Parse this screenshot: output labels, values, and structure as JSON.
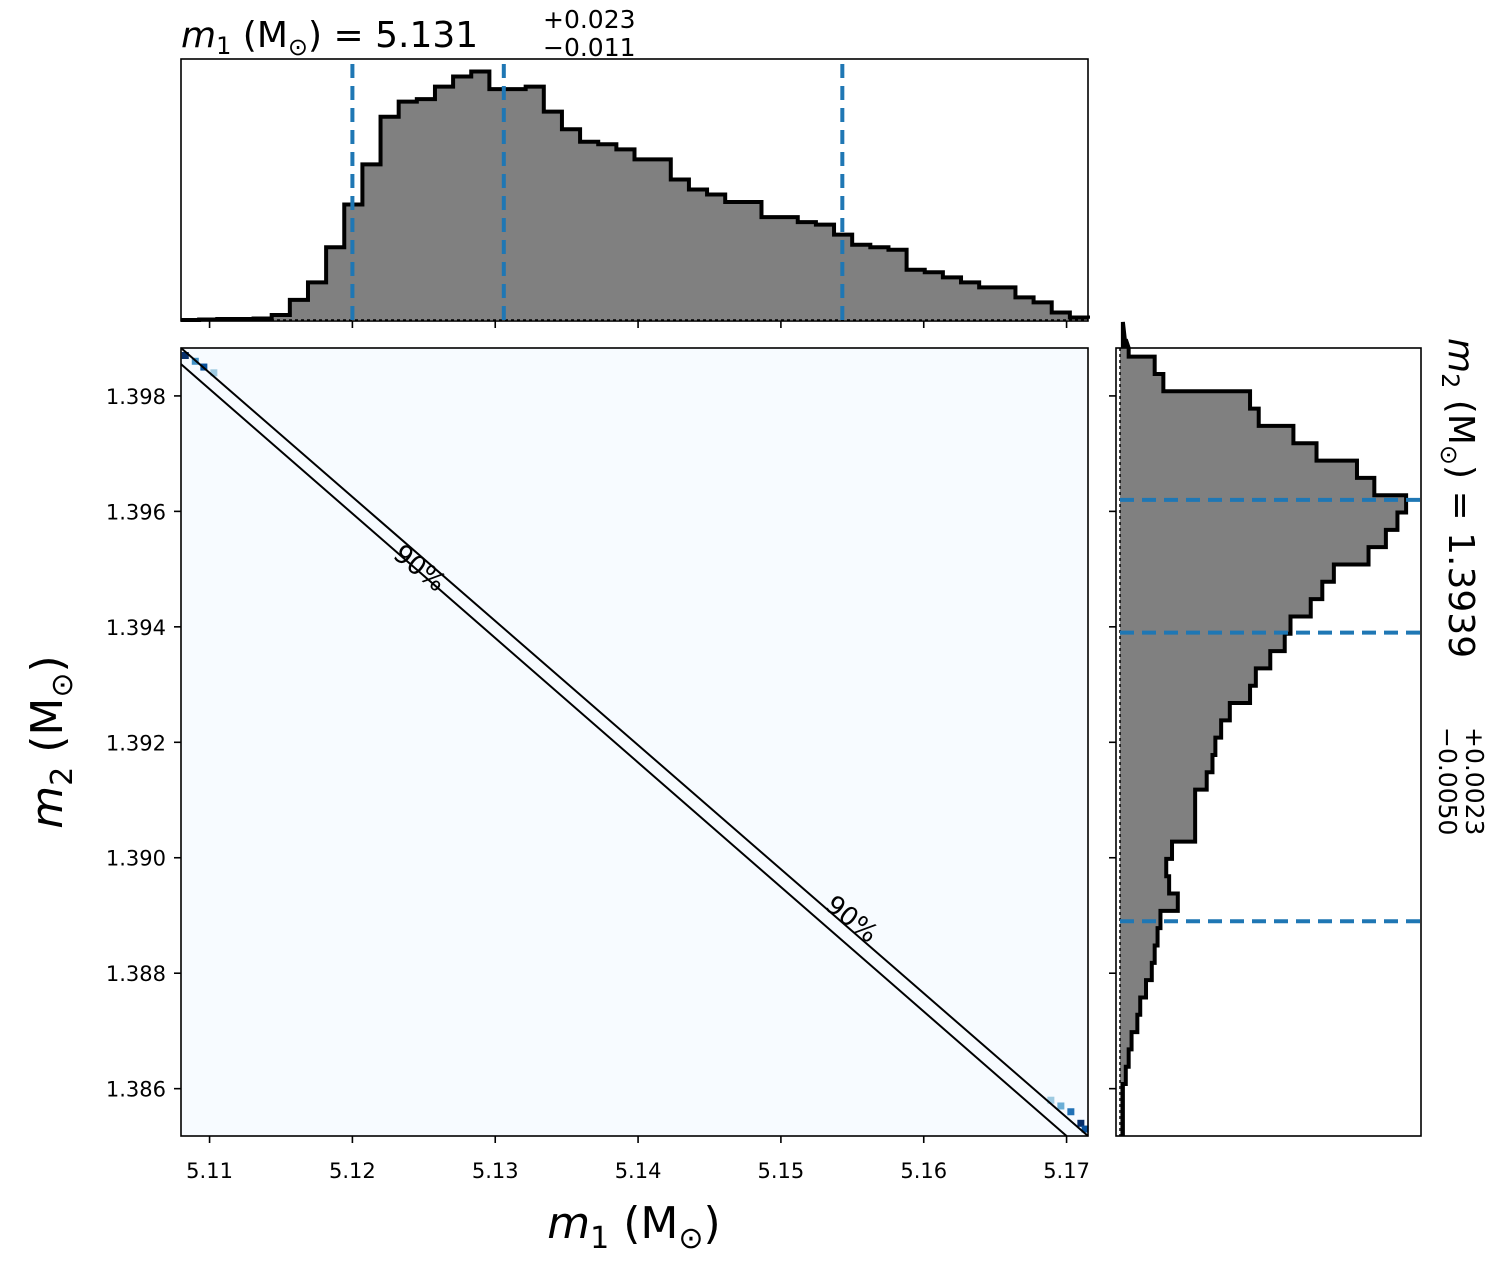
{
  "chart_data": [
    {
      "type": "histogram",
      "panel": "m1-marginal",
      "title": {
        "var": "m",
        "sub": "1",
        "unit": " (M",
        "unit_symbol": "⊙",
        "value_text": ") = 5.131",
        "plus": "+0.023",
        "minus": "−0.011"
      },
      "xlim": [
        5.108,
        5.1715
      ],
      "bins": {
        "start": 5.108,
        "width": 0.00127,
        "heights": [
          0.0,
          0.002,
          0.004,
          0.004,
          0.006,
          0.02,
          0.08,
          0.15,
          0.29,
          0.46,
          0.62,
          0.81,
          0.87,
          0.88,
          0.93,
          0.97,
          0.99,
          0.92,
          0.92,
          0.93,
          0.83,
          0.76,
          0.71,
          0.7,
          0.68,
          0.64,
          0.64,
          0.56,
          0.52,
          0.5,
          0.47,
          0.47,
          0.41,
          0.41,
          0.39,
          0.38,
          0.34,
          0.3,
          0.29,
          0.28,
          0.2,
          0.19,
          0.17,
          0.15,
          0.13,
          0.13,
          0.09,
          0.07,
          0.03,
          0.01,
          0.005
        ]
      },
      "quantiles": [
        5.12,
        5.1306,
        5.1543
      ],
      "color": "#808080",
      "line_color": "#1f77b4"
    },
    {
      "type": "heatmap",
      "panel": "joint",
      "xlabel": {
        "var": "m",
        "sub": "1",
        "unit": " (M",
        "unit_symbol": "⊙",
        "close": ")"
      },
      "ylabel": {
        "var": "m",
        "sub": "2",
        "unit": " (M",
        "unit_symbol": "⊙",
        "close": ")"
      },
      "xlim": [
        5.108,
        5.1715
      ],
      "ylim": [
        1.38518,
        1.39883
      ],
      "xticks": [
        "5.11",
        "5.12",
        "5.13",
        "5.14",
        "5.15",
        "5.16",
        "5.17"
      ],
      "xtick_values": [
        5.11,
        5.12,
        5.13,
        5.14,
        5.15,
        5.16,
        5.17
      ],
      "yticks": [
        "1.386",
        "1.388",
        "1.390",
        "1.392",
        "1.394",
        "1.396",
        "1.398"
      ],
      "ytick_values": [
        1.386,
        1.388,
        1.39,
        1.392,
        1.394,
        1.396,
        1.398
      ],
      "contour_label": "90%",
      "contour_lines": [
        {
          "from": [
            5.108,
            1.39883
          ],
          "to": [
            5.1715,
            1.38518
          ]
        },
        {
          "from": [
            5.108,
            1.39855
          ],
          "to": [
            5.17,
            1.38518
          ]
        }
      ],
      "background": "#f7fbff",
      "cells": [
        {
          "x": 5.1083,
          "y": 1.3987,
          "color": "#08306b"
        },
        {
          "x": 5.109,
          "y": 1.3986,
          "color": "#4292c6"
        },
        {
          "x": 5.1096,
          "y": 1.3985,
          "color": "#08519c"
        },
        {
          "x": 5.1103,
          "y": 1.3984,
          "color": "#9ecae1"
        },
        {
          "x": 5.1689,
          "y": 1.3858,
          "color": "#9ecae1"
        },
        {
          "x": 5.1696,
          "y": 1.3857,
          "color": "#6baed6"
        },
        {
          "x": 5.1703,
          "y": 1.3856,
          "color": "#2171b5"
        },
        {
          "x": 5.171,
          "y": 1.3854,
          "color": "#08306b"
        },
        {
          "x": 5.1713,
          "y": 1.3853,
          "color": "#08519c"
        }
      ]
    },
    {
      "type": "histogram",
      "panel": "m2-marginal",
      "orientation": "horizontal",
      "title": {
        "var": "m",
        "sub": "2",
        "unit": " (M",
        "unit_symbol": "⊙",
        "value_text": ") = 1.3939",
        "plus": "+0.0023",
        "minus": "−0.0050"
      },
      "ylim": [
        1.38518,
        1.39883
      ],
      "bins": {
        "start": 1.38518,
        "width": 0.0003,
        "heights": [
          0.01,
          0.01,
          0.01,
          0.02,
          0.03,
          0.04,
          0.06,
          0.07,
          0.09,
          0.11,
          0.12,
          0.13,
          0.14,
          0.2,
          0.17,
          0.16,
          0.18,
          0.26,
          0.26,
          0.26,
          0.3,
          0.32,
          0.33,
          0.35,
          0.38,
          0.45,
          0.47,
          0.52,
          0.57,
          0.59,
          0.66,
          0.7,
          0.74,
          0.86,
          0.92,
          0.96,
          0.99,
          0.88,
          0.82,
          0.68,
          0.6,
          0.48,
          0.45,
          0.15,
          0.12,
          0.03,
          0.02,
          0.01
        ]
      },
      "quantiles": [
        1.3889,
        1.3939,
        1.3962
      ],
      "color": "#808080",
      "line_color": "#1f77b4"
    }
  ]
}
